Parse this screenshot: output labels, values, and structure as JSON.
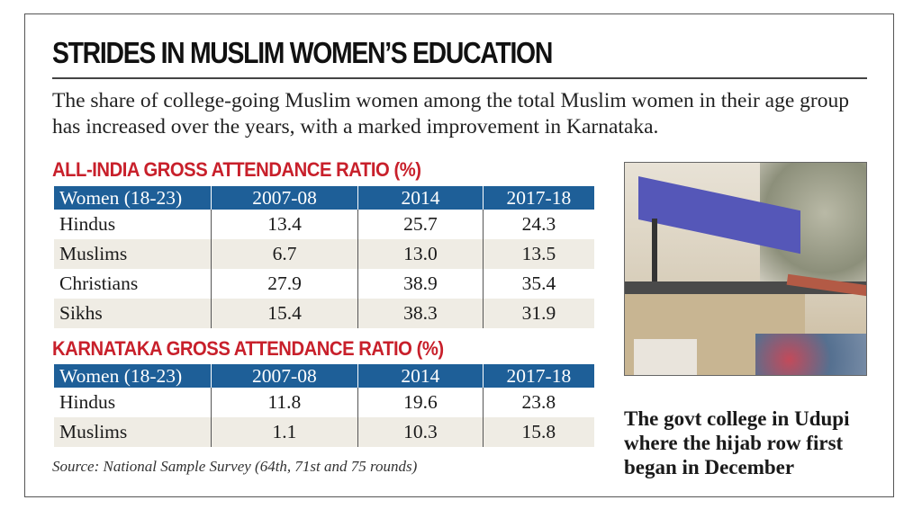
{
  "title": "STRIDES IN MUSLIM WOMEN’S EDUCATION",
  "subtitle": "The share of college-going Muslim women among the total Muslim women in their age group has increased over the years, with a marked improvement in Karnataka.",
  "colors": {
    "header_bg": "#1e5f98",
    "table_title": "#c8202b",
    "alt_row": "#efece4"
  },
  "chart_data": [
    {
      "type": "table",
      "title": "ALL-INDIA GROSS ATTENDANCE RATIO (%)",
      "columns": [
        "Women (18-23)",
        "2007-08",
        "2014",
        "2017-18"
      ],
      "rows": [
        [
          "Hindus",
          "13.4",
          "25.7",
          "24.3"
        ],
        [
          "Muslims",
          "6.7",
          "13.0",
          "13.5"
        ],
        [
          "Christians",
          "27.9",
          "38.9",
          "35.4"
        ],
        [
          "Sikhs",
          "15.4",
          "38.3",
          "31.9"
        ]
      ]
    },
    {
      "type": "table",
      "title": "KARNATAKA GROSS ATTENDANCE RATIO (%)",
      "columns": [
        "Women (18-23)",
        "2007-08",
        "2014",
        "2017-18"
      ],
      "rows": [
        [
          "Hindus",
          "11.8",
          "19.6",
          "23.8"
        ],
        [
          "Muslims",
          "1.1",
          "10.3",
          "15.8"
        ]
      ]
    }
  ],
  "source": "Source: National Sample Survey (64th, 71st and 75 rounds)",
  "photo": {
    "caption": "The govt college in Udupi where the hijab row first began in December"
  }
}
